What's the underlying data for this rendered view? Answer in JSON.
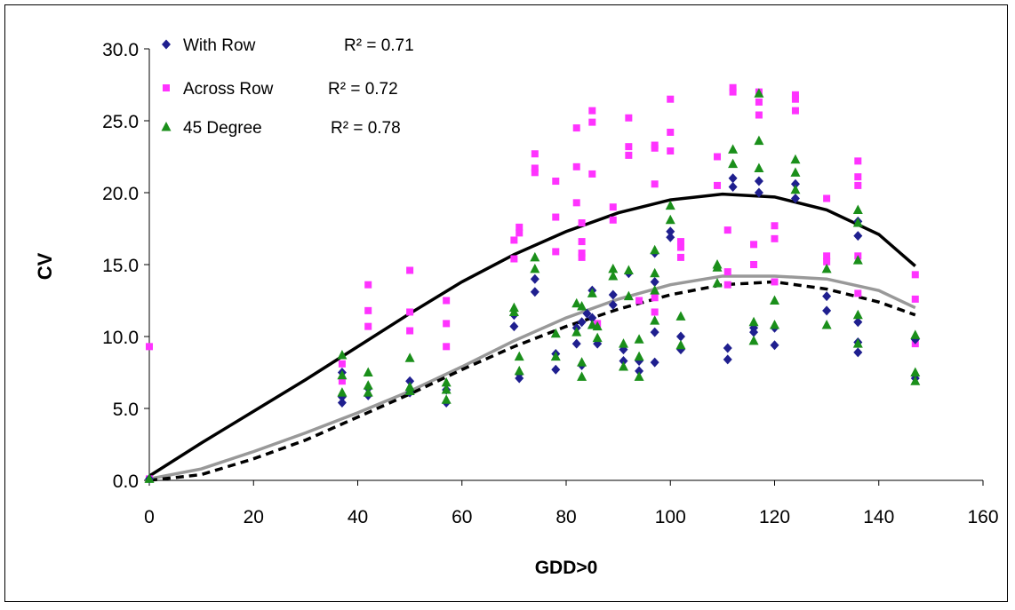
{
  "chart_data": {
    "type": "scatter",
    "xlabel": "GDD>0",
    "ylabel": "CV",
    "xlim": [
      0,
      160
    ],
    "ylim": [
      0,
      30
    ],
    "x_ticks": [
      "0",
      "20",
      "40",
      "60",
      "80",
      "100",
      "120",
      "140",
      "160"
    ],
    "y_ticks": [
      "0.0",
      "5.0",
      "10.0",
      "15.0",
      "20.0",
      "25.0",
      "30.0"
    ],
    "grid": false,
    "legend_position": "top-left",
    "series": [
      {
        "name": "With Row",
        "marker": "diamond",
        "color": "#1f1f8f",
        "r2_label": "R² = 0.71",
        "points": [
          [
            0,
            0.1
          ],
          [
            37,
            5.4
          ],
          [
            37,
            5.8
          ],
          [
            37,
            7.5
          ],
          [
            42,
            5.9
          ],
          [
            42,
            6.4
          ],
          [
            50,
            6.1
          ],
          [
            50,
            6.9
          ],
          [
            57,
            5.4
          ],
          [
            57,
            6.3
          ],
          [
            70,
            10.7
          ],
          [
            70,
            11.5
          ],
          [
            71,
            7.1
          ],
          [
            71,
            7.4
          ],
          [
            74,
            13.1
          ],
          [
            74,
            14.0
          ],
          [
            78,
            7.7
          ],
          [
            78,
            8.8
          ],
          [
            82,
            10.6
          ],
          [
            82,
            9.5
          ],
          [
            83,
            11.0
          ],
          [
            83,
            8.0
          ],
          [
            84,
            11.6
          ],
          [
            85,
            13.2
          ],
          [
            85,
            11.3
          ],
          [
            86,
            9.5
          ],
          [
            89,
            12.9
          ],
          [
            89,
            12.2
          ],
          [
            91,
            8.3
          ],
          [
            91,
            9.1
          ],
          [
            92,
            14.4
          ],
          [
            94,
            7.6
          ],
          [
            94,
            8.3
          ],
          [
            97,
            10.3
          ],
          [
            97,
            8.2
          ],
          [
            97,
            13.8
          ],
          [
            97,
            15.8
          ],
          [
            100,
            16.9
          ],
          [
            100,
            17.3
          ],
          [
            102,
            9.1
          ],
          [
            102,
            10.0
          ],
          [
            111,
            8.4
          ],
          [
            111,
            9.2
          ],
          [
            112,
            20.4
          ],
          [
            112,
            21.0
          ],
          [
            116,
            10.6
          ],
          [
            116,
            10.3
          ],
          [
            117,
            20.8
          ],
          [
            117,
            20.0
          ],
          [
            120,
            9.4
          ],
          [
            120,
            10.6
          ],
          [
            124,
            19.6
          ],
          [
            124,
            20.6
          ],
          [
            130,
            11.8
          ],
          [
            130,
            12.8
          ],
          [
            136,
            8.9
          ],
          [
            136,
            9.6
          ],
          [
            136,
            11.0
          ],
          [
            136,
            17.0
          ],
          [
            136,
            18.0
          ],
          [
            147,
            7.1
          ],
          [
            147,
            9.8
          ]
        ]
      },
      {
        "name": "Across Row",
        "marker": "square",
        "color": "#ff33ff",
        "r2_label": "R² = 0.72",
        "points": [
          [
            0,
            9.3
          ],
          [
            0,
            0.1
          ],
          [
            37,
            6.9
          ],
          [
            37,
            8.1
          ],
          [
            42,
            10.7
          ],
          [
            42,
            11.8
          ],
          [
            42,
            13.6
          ],
          [
            50,
            10.4
          ],
          [
            50,
            11.7
          ],
          [
            50,
            14.6
          ],
          [
            57,
            9.3
          ],
          [
            57,
            10.9
          ],
          [
            57,
            12.5
          ],
          [
            70,
            15.4
          ],
          [
            70,
            16.7
          ],
          [
            71,
            17.2
          ],
          [
            71,
            17.6
          ],
          [
            74,
            21.4
          ],
          [
            74,
            21.7
          ],
          [
            74,
            22.7
          ],
          [
            78,
            15.9
          ],
          [
            78,
            18.3
          ],
          [
            78,
            20.8
          ],
          [
            82,
            24.5
          ],
          [
            82,
            21.8
          ],
          [
            82,
            19.3
          ],
          [
            83,
            17.9
          ],
          [
            83,
            16.6
          ],
          [
            83,
            15.8
          ],
          [
            83,
            15.5
          ],
          [
            85,
            25.7
          ],
          [
            85,
            24.9
          ],
          [
            85,
            21.3
          ],
          [
            86,
            10.9
          ],
          [
            89,
            19.0
          ],
          [
            89,
            18.1
          ],
          [
            92,
            25.2
          ],
          [
            92,
            23.2
          ],
          [
            92,
            22.6
          ],
          [
            94,
            12.5
          ],
          [
            97,
            23.1
          ],
          [
            97,
            23.3
          ],
          [
            97,
            20.6
          ],
          [
            97,
            11.7
          ],
          [
            97,
            12.7
          ],
          [
            100,
            26.5
          ],
          [
            100,
            24.2
          ],
          [
            100,
            22.9
          ],
          [
            102,
            16.6
          ],
          [
            102,
            16.2
          ],
          [
            102,
            15.5
          ],
          [
            109,
            22.5
          ],
          [
            109,
            20.5
          ],
          [
            111,
            17.4
          ],
          [
            111,
            14.5
          ],
          [
            111,
            13.6
          ],
          [
            112,
            27.3
          ],
          [
            112,
            27.0
          ],
          [
            116,
            16.4
          ],
          [
            116,
            15.0
          ],
          [
            117,
            27.0
          ],
          [
            117,
            26.3
          ],
          [
            117,
            25.4
          ],
          [
            120,
            17.7
          ],
          [
            120,
            16.8
          ],
          [
            120,
            13.8
          ],
          [
            124,
            26.8
          ],
          [
            124,
            26.5
          ],
          [
            124,
            25.7
          ],
          [
            130,
            19.6
          ],
          [
            130,
            15.6
          ],
          [
            130,
            15.2
          ],
          [
            136,
            22.2
          ],
          [
            136,
            21.1
          ],
          [
            136,
            20.5
          ],
          [
            136,
            15.6
          ],
          [
            136,
            13.0
          ],
          [
            147,
            14.3
          ],
          [
            147,
            12.6
          ],
          [
            147,
            9.5
          ]
        ]
      },
      {
        "name": "45 Degree",
        "marker": "triangle",
        "color": "#1a8f1a",
        "r2_label": "R² = 0.78",
        "points": [
          [
            0,
            0.1
          ],
          [
            37,
            8.7
          ],
          [
            37,
            7.3
          ],
          [
            37,
            6.1
          ],
          [
            42,
            7.5
          ],
          [
            42,
            6.6
          ],
          [
            42,
            6.1
          ],
          [
            50,
            8.5
          ],
          [
            50,
            6.5
          ],
          [
            50,
            6.2
          ],
          [
            57,
            6.8
          ],
          [
            57,
            6.3
          ],
          [
            57,
            5.6
          ],
          [
            70,
            12.0
          ],
          [
            70,
            11.7
          ],
          [
            71,
            8.6
          ],
          [
            71,
            7.6
          ],
          [
            74,
            15.5
          ],
          [
            74,
            14.7
          ],
          [
            78,
            10.2
          ],
          [
            78,
            8.6
          ],
          [
            82,
            12.3
          ],
          [
            82,
            10.3
          ],
          [
            83,
            12.1
          ],
          [
            83,
            8.2
          ],
          [
            83,
            7.2
          ],
          [
            85,
            13.0
          ],
          [
            85,
            10.8
          ],
          [
            86,
            10.7
          ],
          [
            86,
            9.9
          ],
          [
            89,
            14.7
          ],
          [
            89,
            14.2
          ],
          [
            91,
            9.5
          ],
          [
            91,
            7.9
          ],
          [
            92,
            14.6
          ],
          [
            92,
            12.8
          ],
          [
            94,
            9.8
          ],
          [
            94,
            8.6
          ],
          [
            94,
            7.2
          ],
          [
            97,
            16.0
          ],
          [
            97,
            14.4
          ],
          [
            97,
            13.2
          ],
          [
            97,
            11.1
          ],
          [
            100,
            19.1
          ],
          [
            100,
            18.1
          ],
          [
            102,
            11.4
          ],
          [
            102,
            9.4
          ],
          [
            109,
            15.0
          ],
          [
            109,
            14.8
          ],
          [
            109,
            13.7
          ],
          [
            112,
            23.0
          ],
          [
            112,
            22.0
          ],
          [
            116,
            11.0
          ],
          [
            116,
            9.7
          ],
          [
            117,
            26.9
          ],
          [
            117,
            23.6
          ],
          [
            117,
            21.7
          ],
          [
            120,
            12.5
          ],
          [
            120,
            10.8
          ],
          [
            124,
            22.3
          ],
          [
            124,
            21.4
          ],
          [
            124,
            20.2
          ],
          [
            130,
            14.7
          ],
          [
            130,
            10.8
          ],
          [
            136,
            18.8
          ],
          [
            136,
            17.9
          ],
          [
            136,
            15.3
          ],
          [
            136,
            11.5
          ],
          [
            136,
            9.5
          ],
          [
            147,
            10.1
          ],
          [
            147,
            7.5
          ],
          [
            147,
            6.9
          ]
        ]
      }
    ],
    "trendlines": [
      {
        "series": "Across Row",
        "style": "solid",
        "color": "#000000",
        "x": [
          0,
          10,
          20,
          30,
          40,
          50,
          60,
          70,
          80,
          90,
          100,
          110,
          120,
          130,
          140,
          147
        ],
        "y": [
          0.3,
          2.6,
          4.8,
          7.0,
          9.3,
          11.6,
          13.8,
          15.7,
          17.3,
          18.6,
          19.5,
          19.9,
          19.7,
          18.8,
          17.1,
          14.9
        ]
      },
      {
        "series": "45 Degree",
        "style": "solid",
        "color": "#999999",
        "x": [
          0,
          10,
          20,
          30,
          40,
          50,
          60,
          70,
          80,
          90,
          100,
          110,
          120,
          130,
          140,
          147
        ],
        "y": [
          0.1,
          0.8,
          2.0,
          3.3,
          4.7,
          6.2,
          7.9,
          9.7,
          11.3,
          12.6,
          13.6,
          14.2,
          14.2,
          14.0,
          13.2,
          12.0
        ]
      },
      {
        "series": "With Row",
        "style": "dashed",
        "color": "#000000",
        "x": [
          0,
          10,
          20,
          30,
          40,
          50,
          60,
          70,
          80,
          90,
          100,
          110,
          120,
          130,
          140,
          147
        ],
        "y": [
          0.0,
          0.4,
          1.5,
          2.8,
          4.4,
          6.0,
          7.7,
          9.3,
          10.7,
          11.9,
          12.9,
          13.6,
          13.8,
          13.3,
          12.4,
          11.5
        ]
      }
    ]
  }
}
